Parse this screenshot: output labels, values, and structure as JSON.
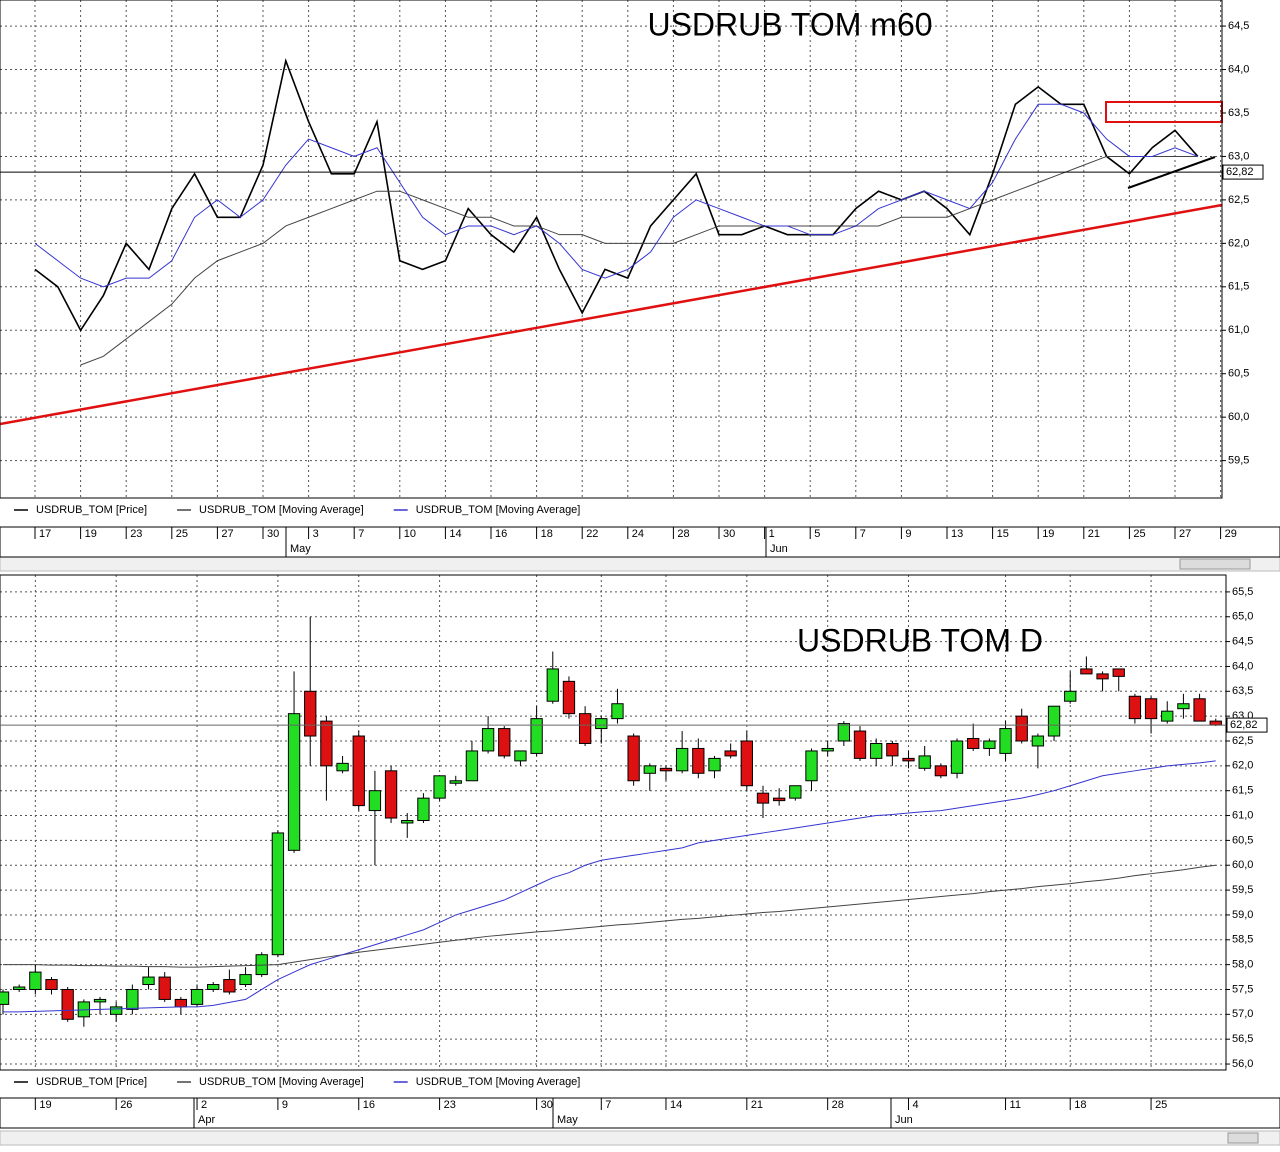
{
  "chart_data": [
    {
      "type": "line",
      "title": "USDRUB TOM m60",
      "categories": [
        "17",
        null,
        "19",
        null,
        "23",
        null,
        "25",
        null,
        "27",
        null,
        "30",
        null,
        "3",
        null,
        "7",
        null,
        "10",
        null,
        "14",
        null,
        "16",
        null,
        "18",
        null,
        "22",
        null,
        "24",
        null,
        "28",
        null,
        "30",
        null,
        "1",
        null,
        "5",
        null,
        "7",
        null,
        "9",
        null,
        "13",
        null,
        "15",
        null,
        "19",
        null,
        "21",
        null,
        "25",
        null,
        "27",
        null,
        "29"
      ],
      "months": [
        "May",
        "Jun"
      ],
      "series": [
        {
          "name": "USDRUB_TOM [Price]",
          "color": "#000000",
          "values": [
            61.7,
            61.5,
            61.0,
            61.4,
            62.0,
            61.7,
            62.4,
            62.8,
            62.3,
            62.3,
            62.9,
            64.1,
            63.4,
            62.8,
            62.8,
            63.4,
            61.8,
            61.7,
            61.8,
            62.4,
            62.1,
            61.9,
            62.3,
            61.7,
            61.2,
            61.7,
            61.6,
            62.2,
            62.5,
            62.8,
            62.1,
            62.1,
            62.2,
            62.1,
            62.1,
            62.1,
            62.4,
            62.6,
            62.5,
            62.6,
            62.4,
            62.1,
            62.8,
            63.6,
            63.8,
            63.6,
            63.6,
            63.0,
            62.8,
            63.1,
            63.3,
            63.0,
            null
          ]
        },
        {
          "name": "USDRUB_TOM [Moving Average]",
          "color": "#444444",
          "values": [
            null,
            null,
            60.6,
            60.7,
            60.9,
            61.1,
            61.3,
            61.6,
            61.8,
            61.9,
            62.0,
            62.2,
            62.3,
            62.4,
            62.5,
            62.6,
            62.6,
            62.5,
            62.4,
            62.3,
            62.3,
            62.2,
            62.2,
            62.1,
            62.1,
            62.0,
            62.0,
            62.0,
            62.0,
            62.1,
            62.2,
            62.2,
            62.2,
            62.2,
            62.2,
            62.2,
            62.2,
            62.2,
            62.3,
            62.3,
            62.3,
            62.4,
            62.5,
            62.6,
            62.7,
            62.8,
            62.9,
            63.0,
            63.0,
            63.0,
            63.0,
            63.0,
            null
          ]
        },
        {
          "name": "USDRUB_TOM [Moving Average]",
          "color": "#3535d0",
          "values": [
            62.0,
            61.8,
            61.6,
            61.5,
            61.6,
            61.6,
            61.8,
            62.3,
            62.5,
            62.3,
            62.5,
            62.9,
            63.2,
            63.1,
            63.0,
            63.1,
            62.7,
            62.3,
            62.1,
            62.2,
            62.2,
            62.1,
            62.2,
            62.0,
            61.7,
            61.6,
            61.7,
            61.9,
            62.3,
            62.5,
            62.4,
            62.3,
            62.2,
            62.2,
            62.1,
            62.1,
            62.2,
            62.4,
            62.5,
            62.6,
            62.5,
            62.4,
            62.7,
            63.2,
            63.6,
            63.6,
            63.5,
            63.2,
            63.0,
            63.0,
            63.1,
            63.0,
            null
          ]
        }
      ],
      "ylim": [
        59.07,
        64.8
      ],
      "yticks": [
        {
          "value": 59.5,
          "label": "59,5"
        },
        {
          "value": 60,
          "label": "60,0"
        },
        {
          "value": 60.5,
          "label": "60,5"
        },
        {
          "value": 61,
          "label": "61,0"
        },
        {
          "value": 61.5,
          "label": "61,5"
        },
        {
          "value": 62,
          "label": "62,0"
        },
        {
          "value": 62.5,
          "label": "62,5"
        },
        {
          "value": 63,
          "label": "63,0"
        },
        {
          "value": 63.5,
          "label": "63,5"
        },
        {
          "value": 64,
          "label": "64,0"
        },
        {
          "value": 64.5,
          "label": "64,5"
        }
      ],
      "last_value": {
        "value": 62.82,
        "label": "62,82"
      },
      "grid": true
    },
    {
      "type": "candlestick",
      "title": "USDRUB TOM D",
      "categories": [
        null,
        null,
        "19",
        null,
        null,
        null,
        null,
        "26",
        null,
        null,
        null,
        null,
        "2",
        null,
        null,
        null,
        null,
        "9",
        null,
        null,
        null,
        null,
        "16",
        null,
        null,
        null,
        null,
        "23",
        null,
        null,
        null,
        null,
        null,
        "30",
        null,
        null,
        null,
        "7",
        null,
        null,
        null,
        "14",
        null,
        null,
        null,
        null,
        "21",
        null,
        null,
        null,
        null,
        "28",
        null,
        null,
        null,
        null,
        "4",
        null,
        null,
        null,
        null,
        null,
        "11",
        null,
        null,
        null,
        "18",
        null,
        null,
        null,
        null,
        "25",
        null,
        null,
        null,
        null
      ],
      "months": [
        "Apr",
        "May",
        "Jun"
      ],
      "series": [
        {
          "name": "USDRUB_TOM [Price]",
          "color": "#000000",
          "up_color": "#22dd22",
          "down_color": "#dd1111",
          "open": [
            57.2,
            57.5,
            57.5,
            57.7,
            57.5,
            56.95,
            57.25,
            57.0,
            57.1,
            57.6,
            57.75,
            57.3,
            57.2,
            57.5,
            57.7,
            57.6,
            57.8,
            58.2,
            60.3,
            63.5,
            62.9,
            61.9,
            62.6,
            61.1,
            61.9,
            60.85,
            60.9,
            61.35,
            61.65,
            61.7,
            62.3,
            62.75,
            62.1,
            62.25,
            63.3,
            63.7,
            63.05,
            62.75,
            62.95,
            62.6,
            61.85,
            61.95,
            61.9,
            62.35,
            61.9,
            62.3,
            62.5,
            61.45,
            61.35,
            61.35,
            61.7,
            62.3,
            62.5,
            62.7,
            62.15,
            62.45,
            62.15,
            61.95,
            62.0,
            61.85,
            62.55,
            62.35,
            62.25,
            63.0,
            62.4,
            62.6,
            63.3,
            63.95,
            63.85,
            63.95,
            63.4,
            63.35,
            62.9,
            63.15,
            63.35,
            62.9
          ],
          "high": [
            57.5,
            57.6,
            58.0,
            57.75,
            57.55,
            57.3,
            57.35,
            57.25,
            57.6,
            57.95,
            57.85,
            57.35,
            57.6,
            57.65,
            57.9,
            57.95,
            58.25,
            60.7,
            63.9,
            65.0,
            63.0,
            62.2,
            62.7,
            61.9,
            62.0,
            61.05,
            61.45,
            61.8,
            61.8,
            62.5,
            63.0,
            62.8,
            62.3,
            63.2,
            64.3,
            63.8,
            63.2,
            63.0,
            63.55,
            62.65,
            62.05,
            62.0,
            62.7,
            62.55,
            62.2,
            62.45,
            62.7,
            61.6,
            61.55,
            61.6,
            62.35,
            62.5,
            62.9,
            62.8,
            62.55,
            62.5,
            62.3,
            62.4,
            62.05,
            62.55,
            62.85,
            62.55,
            62.9,
            63.15,
            62.65,
            63.2,
            63.9,
            64.2,
            63.9,
            63.95,
            63.45,
            63.4,
            63.3,
            63.45,
            63.45,
            62.95
          ],
          "low": [
            57.0,
            57.45,
            57.4,
            57.4,
            56.85,
            56.75,
            57.0,
            56.85,
            57.0,
            57.5,
            57.25,
            57.0,
            57.15,
            57.45,
            57.4,
            57.55,
            57.75,
            58.15,
            60.25,
            62.0,
            61.3,
            61.85,
            61.1,
            60.0,
            60.85,
            60.55,
            60.85,
            61.3,
            61.6,
            61.7,
            62.25,
            62.15,
            62.0,
            62.2,
            63.25,
            62.95,
            62.4,
            62.45,
            62.85,
            61.6,
            61.5,
            61.7,
            61.85,
            61.75,
            61.75,
            62.15,
            61.5,
            60.95,
            61.2,
            61.3,
            61.5,
            62.2,
            62.4,
            62.1,
            62.0,
            62.0,
            61.95,
            61.9,
            61.75,
            61.75,
            62.3,
            62.2,
            62.1,
            62.45,
            61.95,
            62.5,
            63.25,
            63.85,
            63.5,
            63.5,
            62.85,
            62.65,
            62.85,
            62.95,
            62.9,
            62.8
          ],
          "close": [
            57.45,
            57.55,
            57.85,
            57.5,
            56.9,
            57.25,
            57.3,
            57.15,
            57.5,
            57.75,
            57.3,
            57.15,
            57.5,
            57.6,
            57.45,
            57.8,
            58.2,
            60.65,
            63.05,
            62.6,
            62.0,
            62.05,
            61.2,
            61.5,
            60.95,
            60.9,
            61.35,
            61.8,
            61.7,
            62.3,
            62.75,
            62.2,
            62.3,
            62.95,
            63.95,
            63.05,
            62.45,
            62.95,
            63.25,
            61.7,
            62.0,
            61.9,
            62.35,
            61.85,
            62.15,
            62.2,
            61.6,
            61.25,
            61.3,
            61.6,
            62.3,
            62.35,
            62.85,
            62.15,
            62.45,
            62.2,
            62.1,
            62.2,
            61.8,
            62.5,
            62.35,
            62.5,
            62.75,
            62.5,
            62.6,
            63.2,
            63.5,
            63.85,
            63.75,
            63.8,
            62.95,
            62.95,
            63.1,
            63.25,
            62.9,
            62.82
          ]
        },
        {
          "name": "USDRUB_TOM [Moving Average]",
          "color": "#444444",
          "values": [
            58.0,
            58.0,
            58.0,
            57.99,
            57.99,
            57.98,
            57.98,
            57.97,
            57.97,
            57.96,
            57.96,
            57.95,
            57.95,
            57.96,
            57.97,
            57.98,
            57.99,
            58.0,
            58.05,
            58.1,
            58.15,
            58.2,
            58.25,
            58.29,
            58.33,
            58.37,
            58.41,
            58.45,
            58.49,
            58.53,
            58.57,
            58.6,
            58.63,
            58.66,
            58.68,
            58.71,
            58.74,
            58.77,
            58.8,
            58.82,
            58.85,
            58.88,
            58.91,
            58.93,
            58.96,
            58.99,
            59.02,
            59.05,
            59.07,
            59.1,
            59.13,
            59.16,
            59.19,
            59.22,
            59.25,
            59.28,
            59.31,
            59.34,
            59.37,
            59.4,
            59.43,
            59.47,
            59.5,
            59.53,
            59.57,
            59.6,
            59.63,
            59.67,
            59.7,
            59.74,
            59.79,
            59.83,
            59.87,
            59.91,
            59.96,
            60.0
          ]
        },
        {
          "name": "USDRUB_TOM [Moving Average]",
          "color": "#3535d0",
          "values": [
            57.05,
            57.05,
            57.06,
            57.07,
            57.08,
            57.09,
            57.1,
            57.11,
            57.12,
            57.13,
            57.14,
            57.15,
            57.15,
            57.18,
            57.24,
            57.3,
            57.5,
            57.7,
            57.85,
            58.0,
            58.1,
            58.2,
            58.3,
            58.4,
            58.5,
            58.6,
            58.7,
            58.85,
            59.0,
            59.1,
            59.2,
            59.3,
            59.45,
            59.6,
            59.75,
            59.85,
            60.0,
            60.1,
            60.15,
            60.2,
            60.25,
            60.3,
            60.35,
            60.45,
            60.5,
            60.55,
            60.6,
            60.65,
            60.7,
            60.75,
            60.8,
            60.85,
            60.9,
            60.95,
            61.0,
            61.02,
            61.05,
            61.08,
            61.1,
            61.15,
            61.2,
            61.25,
            61.3,
            61.35,
            61.42,
            61.5,
            61.6,
            61.7,
            61.8,
            61.85,
            61.9,
            61.95,
            62.0,
            62.03,
            62.06,
            62.1
          ]
        }
      ],
      "ylim": [
        55.88,
        65.84
      ],
      "yticks": [
        {
          "value": 56,
          "label": "56,0"
        },
        {
          "value": 56.5,
          "label": "56,5"
        },
        {
          "value": 57,
          "label": "57,0"
        },
        {
          "value": 57.5,
          "label": "57,5"
        },
        {
          "value": 58,
          "label": "58,0"
        },
        {
          "value": 58.5,
          "label": "58,5"
        },
        {
          "value": 59,
          "label": "59,0"
        },
        {
          "value": 59.5,
          "label": "59,5"
        },
        {
          "value": 60,
          "label": "60,0"
        },
        {
          "value": 60.5,
          "label": "60,5"
        },
        {
          "value": 61,
          "label": "61,0"
        },
        {
          "value": 61.5,
          "label": "61,5"
        },
        {
          "value": 62,
          "label": "62,0"
        },
        {
          "value": 62.5,
          "label": "62,5"
        },
        {
          "value": 63,
          "label": "63,0"
        },
        {
          "value": 63.5,
          "label": "63,5"
        },
        {
          "value": 64,
          "label": "64,0"
        },
        {
          "value": 64.5,
          "label": "64,5"
        },
        {
          "value": 65,
          "label": "65,0"
        },
        {
          "value": 65.5,
          "label": "65,5"
        }
      ],
      "last_value": {
        "value": 62.82,
        "label": "62,82"
      },
      "grid": true
    }
  ]
}
